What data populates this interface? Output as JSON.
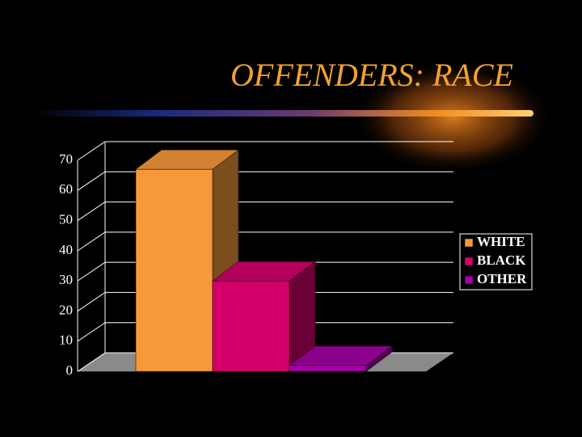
{
  "chart_data": {
    "type": "bar3d",
    "title": "OFFENDERS:  RACE",
    "categories": [
      null
    ],
    "series": [
      {
        "name": "WHITE",
        "color": "#f7993a",
        "values": [
          67
        ]
      },
      {
        "name": "BLACK",
        "color": "#d4006a",
        "values": [
          30
        ]
      },
      {
        "name": "OTHER",
        "color": "#a400a4",
        "values": [
          2
        ]
      }
    ],
    "ylim": [
      0,
      70
    ],
    "yticks": [
      0,
      10,
      20,
      30,
      40,
      50,
      60,
      70
    ],
    "grid": true,
    "legend": "right"
  }
}
